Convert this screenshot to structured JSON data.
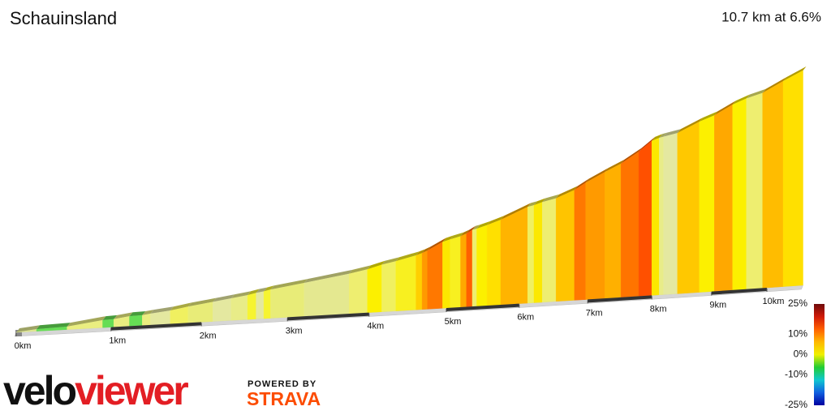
{
  "chart_data": {
    "type": "profile",
    "title": "Schauinsland",
    "subtitle": "10.7 km at 6.6%",
    "x": [
      0,
      0.21,
      0.53,
      0.91,
      1.03,
      1.2,
      1.34,
      1.43,
      1.65,
      1.85,
      2.13,
      2.34,
      2.53,
      2.63,
      2.72,
      2.8,
      3.2,
      3.75,
      3.98,
      4.16,
      4.34,
      4.6,
      4.68,
      4.75,
      4.95,
      5.05,
      5.19,
      5.27,
      5.35,
      5.41,
      5.55,
      5.74,
      6.12,
      6.21,
      6.33,
      6.53,
      6.8,
      6.97,
      7.26,
      7.51,
      7.79,
      8.0,
      8.12,
      8.19,
      8.42,
      8.79,
      9.05,
      9.37,
      9.62,
      9.92,
      10.31,
      10.7
    ],
    "gradient": [
      3,
      1,
      4,
      1,
      4,
      1,
      4,
      3,
      5,
      4,
      4,
      4,
      6,
      4,
      6,
      4,
      4,
      5,
      7,
      5,
      6,
      8,
      11,
      13,
      7,
      6,
      10,
      14,
      5,
      7,
      8,
      10,
      5,
      7,
      5,
      9,
      13,
      11,
      10,
      13,
      16,
      7,
      4,
      4,
      9,
      7,
      10,
      7,
      5,
      9,
      8
    ],
    "colors": [
      "#e0e890",
      "#66dd55",
      "#eaee80",
      "#66dd55",
      "#eaee80",
      "#66dd55",
      "#eaee80",
      "#e4e8a0",
      "#f0f060",
      "#e8ec78",
      "#e4e8a0",
      "#e8ec88",
      "#f6f430",
      "#e4e8a0",
      "#f6f430",
      "#e8ec78",
      "#e4e890",
      "#eeee70",
      "#fcf000",
      "#f0f060",
      "#f8f020",
      "#ffd000",
      "#ff9a00",
      "#ff7800",
      "#fce800",
      "#f8f020",
      "#ffa800",
      "#ff6000",
      "#eeee70",
      "#fcf000",
      "#ffe000",
      "#ffb400",
      "#f0f060",
      "#fce800",
      "#eeee70",
      "#ffc400",
      "#ff7800",
      "#ff9a00",
      "#ffb000",
      "#ff7400",
      "#ff5000",
      "#fce800",
      "#e8ec88",
      "#e4e8a0",
      "#ffc800",
      "#fcf000",
      "#ffa800",
      "#fcf000",
      "#eeee70",
      "#ffbc00",
      "#ffe000"
    ],
    "xticks": [
      {
        "value": 0,
        "label": "0km"
      },
      {
        "value": 1,
        "label": "1km"
      },
      {
        "value": 2,
        "label": "2km"
      },
      {
        "value": 3,
        "label": "3km"
      },
      {
        "value": 4,
        "label": "4km"
      },
      {
        "value": 5,
        "label": "5km"
      },
      {
        "value": 6,
        "label": "6km"
      },
      {
        "value": 7,
        "label": "7km"
      },
      {
        "value": 8,
        "label": "8km"
      },
      {
        "value": 9,
        "label": "9km"
      },
      {
        "value": 10,
        "label": "10km"
      }
    ],
    "colorbar": {
      "clim": [
        -25,
        25
      ],
      "colors": [
        "#0000a0",
        "#1060e0",
        "#10c8d0",
        "#22cc33",
        "#f0f000",
        "#ffb800",
        "#ff6000",
        "#d01a08",
        "#6e0a0a"
      ],
      "ticks": [
        {
          "value": 25,
          "label": "25%"
        },
        {
          "value": 10,
          "label": "10%"
        },
        {
          "value": 0,
          "label": "0%"
        },
        {
          "value": -10,
          "label": "-10%"
        },
        {
          "value": -25,
          "label": "-25%"
        }
      ]
    }
  },
  "brand": {
    "velo": "velo",
    "viewer": "viewer",
    "powered_by": "POWERED BY",
    "strava": "STRAVA"
  }
}
